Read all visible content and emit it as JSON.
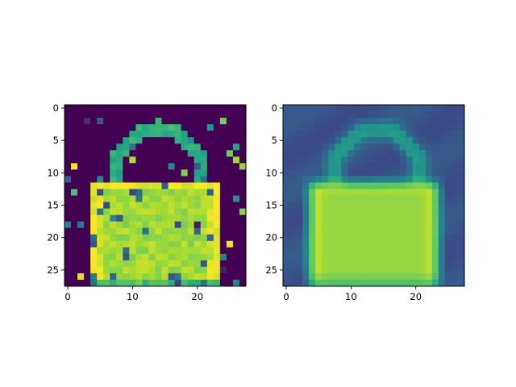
{
  "chart_data": [
    {
      "type": "heatmap",
      "title": "",
      "xlabel": "",
      "ylabel": "",
      "xlim": [
        -0.5,
        27.5
      ],
      "ylim": [
        27.5,
        -0.5
      ],
      "xticks": [
        0,
        10,
        20
      ],
      "yticks": [
        0,
        5,
        10,
        15,
        20,
        25
      ],
      "grid": false,
      "colormap": "viridis",
      "value_range": [
        0,
        1
      ],
      "grid_size": [
        28,
        28
      ],
      "description": "noisy input image of a handbag with speckle noise"
    },
    {
      "type": "heatmap",
      "title": "",
      "xlabel": "",
      "ylabel": "",
      "xlim": [
        -0.5,
        27.5
      ],
      "ylim": [
        27.5,
        -0.5
      ],
      "xticks": [
        0,
        10,
        20
      ],
      "yticks": [
        0,
        5,
        10,
        15,
        20,
        25
      ],
      "grid": false,
      "colormap": "viridis",
      "value_range": [
        0,
        1
      ],
      "grid_size": [
        28,
        28
      ],
      "description": "denoised reconstruction of the handbag"
    }
  ],
  "colors": {
    "viridis_low": "#440154",
    "viridis_mid": "#21918c",
    "viridis_high": "#fde725"
  }
}
